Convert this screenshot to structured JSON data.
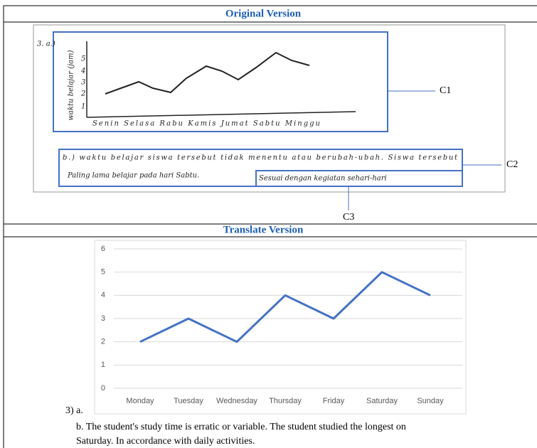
{
  "original_header": "Original Version",
  "original": {
    "question": "3. a.)",
    "y_label": "waktu belajar (jam)",
    "y_ticks": [
      "1",
      "2",
      "3",
      "4",
      "5"
    ],
    "days": "Senin Selasa Rabu Kamis Jumat Sabtu Minggu",
    "answer_line_1": "b.) waktu belajar siswa tersebut tidak menentu atau berubah-ubah. Siswa tersebut",
    "answer_line_2": "Paling lama belajar pada hari Sabtu.",
    "answer_line_3": "Sesuai dengan kegiatan sehari-hari",
    "labels": [
      "C1",
      "C2",
      "C3"
    ]
  },
  "translate_header": "Translate Version",
  "chart_data": {
    "type": "line",
    "categories": [
      "Monday",
      "Tuesday",
      "Wednesday",
      "Thursday",
      "Friday",
      "Saturday",
      "Sunday"
    ],
    "values": [
      2,
      3,
      2,
      4,
      3,
      5,
      4
    ],
    "color": "#4472c4",
    "ylim": [
      0,
      6
    ],
    "yticks": [
      0,
      1,
      2,
      3,
      4,
      5,
      6
    ],
    "grid": true
  },
  "answer": {
    "a": "3) a.",
    "b_line_1": "b. The student's study time is erratic or variable. The student studied the longest on",
    "b_line_2": "Saturday. In accordance with daily activities."
  }
}
